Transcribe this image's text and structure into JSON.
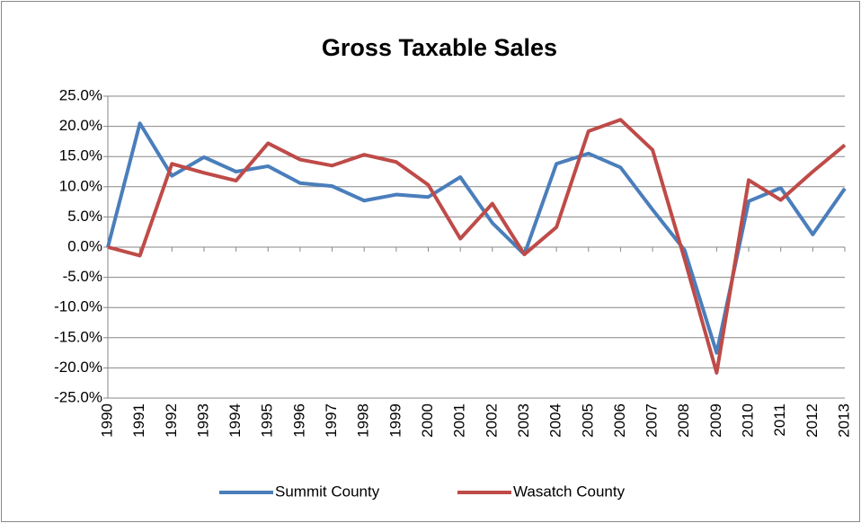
{
  "chart_data": {
    "type": "line",
    "title": "Gross Taxable Sales",
    "categories": [
      "1990",
      "1991",
      "1992",
      "1993",
      "1994",
      "1995",
      "1996",
      "1997",
      "1998",
      "1999",
      "2000",
      "2001",
      "2002",
      "2003",
      "2004",
      "2005",
      "2006",
      "2007",
      "2008",
      "2009",
      "2010",
      "2011",
      "2012",
      "2013"
    ],
    "series": [
      {
        "name": "Summit County",
        "color": "#4a7ebb",
        "values": [
          0,
          20.5,
          11.8,
          14.9,
          12.5,
          13.4,
          10.6,
          10.1,
          7.7,
          8.7,
          8.3,
          11.6,
          4.0,
          -1.2,
          13.8,
          15.5,
          13.2,
          6.2,
          -0.5,
          -17.5,
          7.6,
          9.8,
          2.1,
          9.7
        ]
      },
      {
        "name": "Wasatch County",
        "color": "#be4b48",
        "values": [
          0,
          -1.4,
          13.8,
          12.3,
          11.0,
          17.2,
          14.5,
          13.5,
          15.3,
          14.1,
          10.3,
          1.4,
          7.2,
          -1.2,
          3.3,
          19.2,
          21.1,
          16.1,
          -2.0,
          -20.8,
          11.1,
          7.8,
          12.5,
          16.9
        ]
      }
    ],
    "ylim": [
      -25,
      25
    ],
    "yticks": [
      {
        "value": 25,
        "label": "25.0%"
      },
      {
        "value": 20,
        "label": "20.0%"
      },
      {
        "value": 15,
        "label": "15.0%"
      },
      {
        "value": 10,
        "label": "10.0%"
      },
      {
        "value": 5,
        "label": "5.0%"
      },
      {
        "value": 0,
        "label": "0.0%"
      },
      {
        "value": -5,
        "label": "-5.0%"
      },
      {
        "value": -10,
        "label": "-10.0%"
      },
      {
        "value": -15,
        "label": "-15.0%"
      },
      {
        "value": -20,
        "label": "-20.0%"
      },
      {
        "value": -25,
        "label": "-25.0%"
      }
    ],
    "grid": true,
    "legend": "bottom"
  }
}
